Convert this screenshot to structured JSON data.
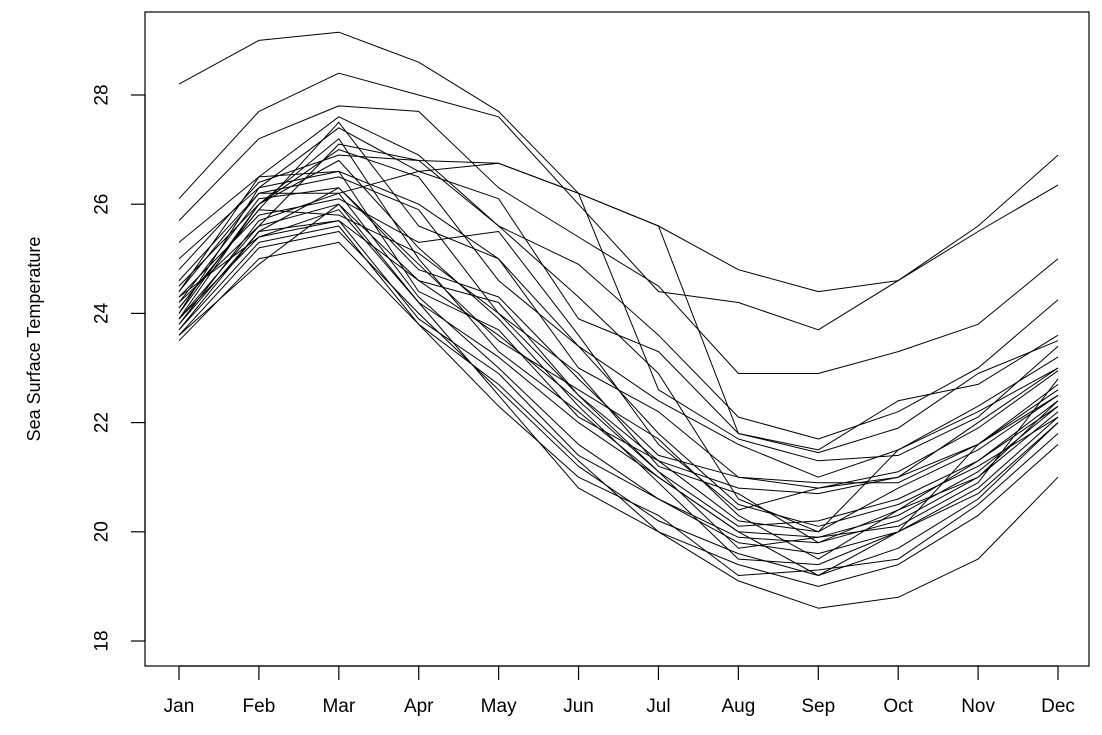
{
  "chart_data": {
    "type": "line",
    "title": "",
    "xlabel": "",
    "ylabel": "Sea Surface Temperature",
    "categories": [
      "Jan",
      "Feb",
      "Mar",
      "Apr",
      "May",
      "Jun",
      "Jul",
      "Aug",
      "Sep",
      "Oct",
      "Nov",
      "Dec"
    ],
    "ylim": [
      17.8,
      29.6
    ],
    "yticks": [
      18,
      20,
      22,
      24,
      26,
      28
    ],
    "grid": false,
    "legend": "none",
    "line_color": "#000000",
    "series": [
      {
        "values": [
          28.2,
          29.0,
          29.15,
          28.6,
          27.7,
          26.2,
          25.6,
          24.8,
          24.4,
          24.6,
          25.6,
          26.9
        ]
      },
      {
        "values": [
          26.1,
          27.7,
          28.4,
          28.0,
          27.6,
          26.0,
          24.4,
          24.2,
          23.7,
          24.6,
          25.5,
          26.35
        ]
      },
      {
        "values": [
          25.7,
          27.2,
          27.8,
          27.7,
          26.3,
          25.4,
          24.5,
          22.9,
          22.9,
          23.3,
          23.8,
          25.0
        ]
      },
      {
        "values": [
          25.3,
          26.5,
          27.6,
          26.9,
          25.6,
          24.9,
          23.6,
          22.1,
          21.7,
          22.2,
          23.0,
          24.25
        ]
      },
      {
        "values": [
          25.0,
          26.3,
          27.4,
          26.6,
          26.1,
          23.9,
          23.3,
          21.8,
          21.5,
          22.4,
          22.7,
          23.6
        ]
      },
      {
        "values": [
          24.8,
          26.4,
          26.9,
          26.8,
          26.75,
          26.2,
          25.6,
          21.8,
          21.45,
          21.9,
          22.9,
          23.5
        ]
      },
      {
        "values": [
          24.6,
          26.2,
          26.2,
          26.6,
          26.75,
          26.2,
          22.6,
          21.7,
          21.3,
          21.4,
          22.1,
          23.4
        ]
      },
      {
        "values": [
          24.5,
          26.0,
          27.0,
          26.5,
          24.6,
          23.4,
          22.4,
          21.6,
          21.0,
          21.5,
          22.3,
          23.2
        ]
      },
      {
        "values": [
          24.4,
          26.5,
          26.6,
          26.0,
          25.0,
          23.0,
          22.2,
          21.0,
          20.8,
          21.0,
          22.0,
          23.0
        ]
      },
      {
        "values": [
          24.3,
          25.8,
          26.1,
          25.3,
          25.5,
          23.6,
          21.6,
          20.4,
          20.8,
          21.1,
          21.9,
          22.95
        ]
      },
      {
        "values": [
          24.2,
          26.1,
          26.3,
          24.8,
          24.3,
          22.8,
          21.4,
          21.0,
          20.9,
          20.9,
          21.6,
          22.7
        ]
      },
      {
        "values": [
          24.1,
          25.9,
          25.8,
          25.1,
          24.0,
          22.5,
          21.3,
          20.8,
          20.7,
          21.0,
          21.6,
          22.6
        ]
      },
      {
        "values": [
          24.0,
          26.3,
          26.6,
          24.4,
          23.7,
          22.1,
          21.3,
          20.2,
          20.0,
          20.8,
          21.5,
          22.5
        ]
      },
      {
        "values": [
          23.9,
          25.6,
          26.0,
          24.6,
          23.6,
          22.4,
          21.1,
          20.1,
          20.2,
          20.6,
          21.3,
          22.4
        ]
      },
      {
        "values": [
          23.9,
          25.4,
          25.9,
          24.2,
          23.2,
          22.0,
          21.0,
          20.0,
          19.9,
          20.3,
          21.1,
          22.3
        ]
      },
      {
        "values": [
          23.8,
          25.7,
          26.2,
          24.3,
          23.0,
          21.6,
          20.6,
          19.9,
          19.8,
          20.2,
          21.0,
          22.2
        ]
      },
      {
        "values": [
          23.7,
          25.5,
          25.7,
          23.9,
          22.9,
          21.4,
          20.6,
          19.8,
          19.6,
          20.0,
          20.8,
          22.1
        ]
      },
      {
        "values": [
          23.6,
          25.2,
          25.5,
          24.0,
          22.6,
          21.2,
          20.2,
          19.6,
          19.2,
          19.7,
          20.6,
          22.0
        ]
      },
      {
        "values": [
          23.5,
          25.0,
          25.3,
          23.8,
          22.3,
          21.0,
          20.3,
          19.2,
          19.3,
          19.5,
          20.5,
          21.8
        ]
      },
      {
        "values": [
          23.6,
          24.9,
          26.0,
          24.2,
          22.5,
          20.8,
          20.0,
          19.4,
          19.0,
          19.4,
          20.3,
          21.6
        ]
      },
      {
        "values": [
          23.7,
          25.3,
          25.6,
          23.8,
          22.7,
          21.3,
          20.0,
          19.1,
          18.6,
          18.8,
          19.5,
          21.0
        ]
      },
      {
        "values": [
          24.2,
          25.6,
          27.1,
          26.8,
          25.6,
          24.3,
          22.9,
          20.6,
          20.0,
          21.5,
          22.2,
          23.0
        ]
      },
      {
        "values": [
          24.0,
          26.0,
          27.2,
          25.0,
          23.3,
          22.2,
          21.0,
          20.0,
          19.2,
          20.0,
          21.6,
          22.5
        ]
      },
      {
        "values": [
          23.8,
          25.5,
          26.3,
          24.9,
          23.5,
          22.6,
          21.7,
          20.3,
          19.5,
          20.4,
          21.3,
          22.3
        ]
      },
      {
        "values": [
          24.1,
          25.9,
          27.5,
          25.6,
          25.0,
          23.4,
          21.8,
          20.5,
          20.1,
          20.5,
          21.2,
          22.1
        ]
      },
      {
        "values": [
          24.4,
          26.2,
          26.5,
          25.9,
          24.0,
          22.9,
          21.2,
          20.7,
          19.8,
          20.4,
          21.0,
          22.4
        ]
      },
      {
        "values": [
          24.3,
          25.4,
          25.7,
          24.6,
          24.2,
          22.5,
          21.1,
          19.7,
          19.9,
          20.1,
          20.9,
          22.8
        ]
      },
      {
        "values": [
          23.9,
          26.0,
          26.8,
          25.2,
          23.9,
          22.3,
          20.9,
          19.5,
          19.4,
          20.0,
          20.7,
          22.0
        ]
      }
    ]
  }
}
